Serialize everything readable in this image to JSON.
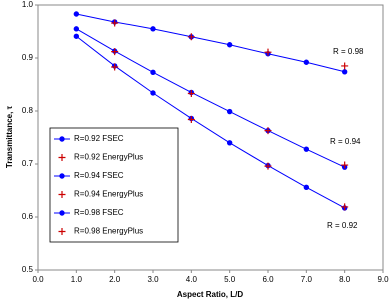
{
  "chart_data": {
    "type": "line",
    "x_label": "Aspect Ratio, L/D",
    "y_label": "Transmittance, τ",
    "xlim": [
      0,
      9
    ],
    "xticks": [
      {
        "value": 0,
        "label": "0.0"
      },
      {
        "value": 1,
        "label": "1.0"
      },
      {
        "value": 2,
        "label": "2.0"
      },
      {
        "value": 3,
        "label": "3.0"
      },
      {
        "value": 4,
        "label": "4.0"
      },
      {
        "value": 5,
        "label": "5.0"
      },
      {
        "value": 6,
        "label": "6.0"
      },
      {
        "value": 7,
        "label": "7.0"
      },
      {
        "value": 8,
        "label": "8.0"
      },
      {
        "value": 9,
        "label": "9.0"
      }
    ],
    "ylim": [
      0.5,
      1
    ],
    "yticks": [
      0.5,
      0.6,
      0.7,
      0.8,
      0.9,
      {
        "value": 1,
        "label": "1.0"
      }
    ],
    "grid": false,
    "legend": "lower-left",
    "series": [
      {
        "name": "R=0.92 FSEC",
        "color": "#0000ff",
        "marker": "circle",
        "line": true,
        "x": [
          1,
          2,
          3,
          4,
          5,
          6,
          7,
          8
        ],
        "values": [
          0.941,
          0.885,
          0.834,
          0.786,
          0.74,
          0.697,
          0.656,
          0.617
        ]
      },
      {
        "name": "R=0.92 EnergyPlus",
        "color": "#cc0000",
        "marker": "plus",
        "line": false,
        "x": [
          2,
          4,
          6,
          8
        ],
        "values": [
          0.883,
          0.784,
          0.696,
          0.619
        ]
      },
      {
        "name": "R=0.94 FSEC",
        "color": "#0000ff",
        "marker": "circle",
        "line": true,
        "x": [
          1,
          2,
          3,
          4,
          5,
          6,
          7,
          8
        ],
        "values": [
          0.955,
          0.913,
          0.873,
          0.835,
          0.799,
          0.763,
          0.728,
          0.694
        ]
      },
      {
        "name": "R=0.94 EnergyPlus",
        "color": "#cc0000",
        "marker": "plus",
        "line": false,
        "x": [
          2,
          4,
          6,
          8
        ],
        "values": [
          0.912,
          0.833,
          0.763,
          0.698
        ]
      },
      {
        "name": "R=0.98 FSEC",
        "color": "#0000ff",
        "marker": "circle",
        "line": true,
        "x": [
          1,
          2,
          3,
          4,
          5,
          6,
          7,
          8
        ],
        "values": [
          0.983,
          0.968,
          0.955,
          0.94,
          0.925,
          0.908,
          0.892,
          0.874
        ]
      },
      {
        "name": "R=0.98 EnergyPlus",
        "color": "#cc0000",
        "marker": "plus",
        "line": false,
        "x": [
          2,
          4,
          6,
          8
        ],
        "values": [
          0.966,
          0.94,
          0.911,
          0.885
        ]
      }
    ],
    "annotations": [
      "R = 0.98",
      "R = 0.94",
      "R = 0.92"
    ]
  }
}
